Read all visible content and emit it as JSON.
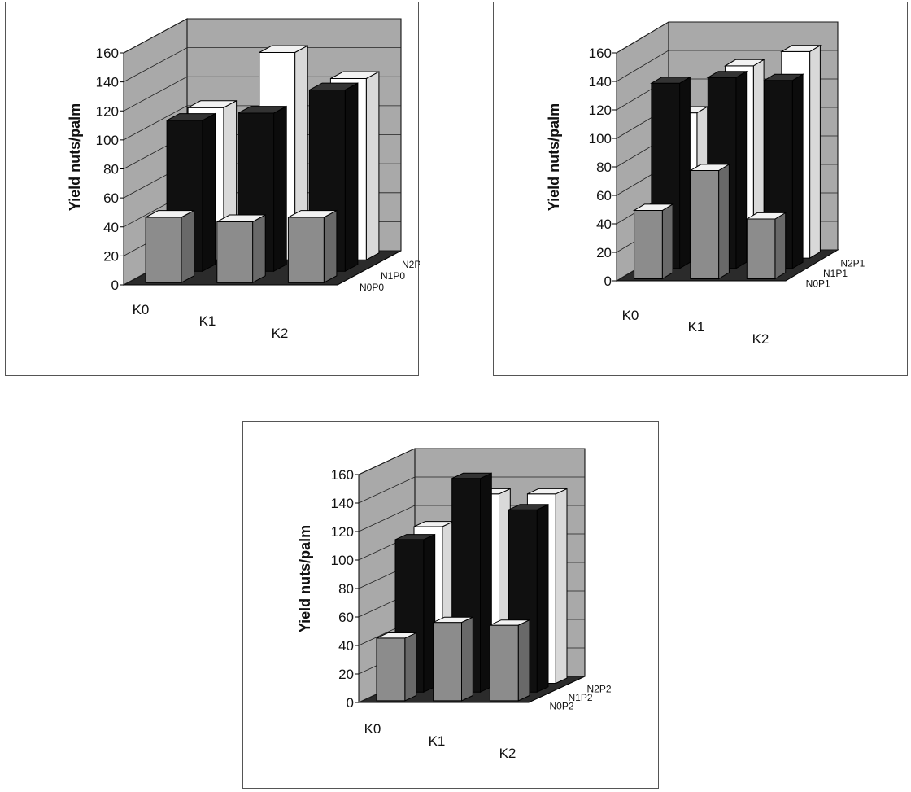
{
  "colors": {
    "wall": "#a9a9a9",
    "floor": "#2b2b2b",
    "grey_bar": "#8c8c8c",
    "black_bar": "#101010",
    "white_bar": "#ffffff"
  },
  "chart_data": [
    {
      "type": "bar",
      "ylabel": "Yield nuts/palm",
      "ylim": [
        0,
        160
      ],
      "yticks": [
        "0",
        "20",
        "40",
        "60",
        "80",
        "100",
        "120",
        "140",
        "160"
      ],
      "categories": [
        "K0",
        "K1",
        "K2"
      ],
      "series": [
        {
          "name": "N0P0",
          "label": "N0P0",
          "values": [
            45,
            42,
            45
          ]
        },
        {
          "name": "N1P0",
          "label": "N1P0",
          "values": [
            104,
            109,
            125
          ]
        },
        {
          "name": "N2P0",
          "label": "N2P0",
          "values": [
            105,
            143,
            125
          ]
        }
      ]
    },
    {
      "type": "bar",
      "ylabel": "Yield nuts/palm",
      "ylim": [
        0,
        160
      ],
      "yticks": [
        "0",
        "20",
        "40",
        "60",
        "80",
        "100",
        "120",
        "140",
        "160"
      ],
      "categories": [
        "K0",
        "K1",
        "K2"
      ],
      "series": [
        {
          "name": "N0P1",
          "label": "N0P1",
          "values": [
            48,
            76,
            42
          ]
        },
        {
          "name": "N1P1",
          "label": "N1P1",
          "values": [
            130,
            134,
            132
          ]
        },
        {
          "name": "N2P1",
          "label": "N2P1",
          "values": [
            102,
            135,
            145
          ]
        }
      ]
    },
    {
      "type": "bar",
      "ylabel": "Yield nuts/palm",
      "ylim": [
        0,
        160
      ],
      "yticks": [
        "0",
        "20",
        "40",
        "60",
        "80",
        "100",
        "120",
        "140",
        "160"
      ],
      "categories": [
        "K0",
        "K1",
        "K2"
      ],
      "series": [
        {
          "name": "N0P2",
          "label": "N0P2",
          "values": [
            44,
            55,
            53
          ]
        },
        {
          "name": "N1P2",
          "label": "N1P2",
          "values": [
            107,
            150,
            128
          ]
        },
        {
          "name": "N2P2",
          "label": "N2P2",
          "values": [
            110,
            133,
            133
          ]
        }
      ]
    }
  ]
}
